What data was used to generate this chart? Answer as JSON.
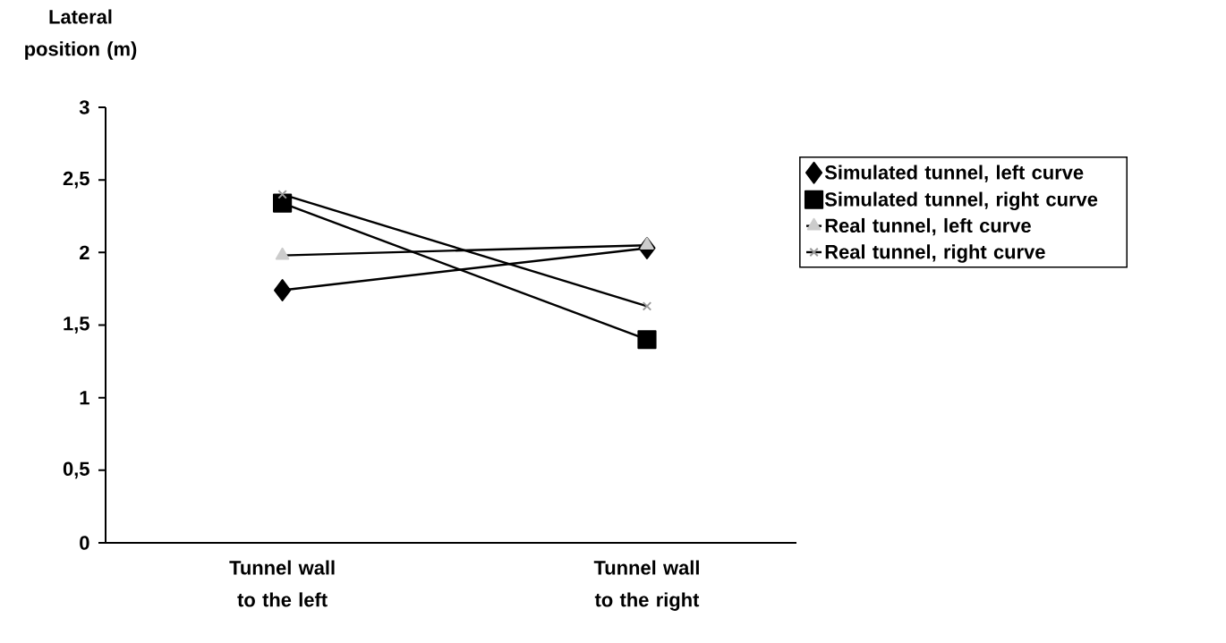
{
  "chart_data": {
    "type": "line",
    "ylabel": "Lateral position (m)",
    "categories": [
      "Tunnel wall to the left",
      "Tunnel wall to the right"
    ],
    "series": [
      {
        "name": "Simulated tunnel, left curve",
        "color": "#000000",
        "marker": "diamond",
        "values": [
          1.74,
          2.03
        ]
      },
      {
        "name": "Simulated tunnel, right curve",
        "color": "#000000",
        "marker": "square",
        "values": [
          2.34,
          1.4
        ]
      },
      {
        "name": "Real tunnel, left curve",
        "color": "#cccccc",
        "marker": "triangle",
        "values": [
          1.98,
          2.05
        ]
      },
      {
        "name": "Real tunnel, right curve",
        "color": "#999999",
        "marker": "cross",
        "values": [
          2.4,
          1.63
        ]
      }
    ],
    "ylim": [
      0,
      3
    ],
    "yticks": [
      {
        "value": 0,
        "label": "0"
      },
      {
        "value": 0.5,
        "label": "0,5"
      },
      {
        "value": 1,
        "label": "1"
      },
      {
        "value": 1.5,
        "label": "1,5"
      },
      {
        "value": 2,
        "label": "2"
      },
      {
        "value": 2.5,
        "label": "2,5"
      },
      {
        "value": 3,
        "label": "3"
      }
    ],
    "grid": false,
    "legend": "right",
    "line_style": "solid"
  }
}
